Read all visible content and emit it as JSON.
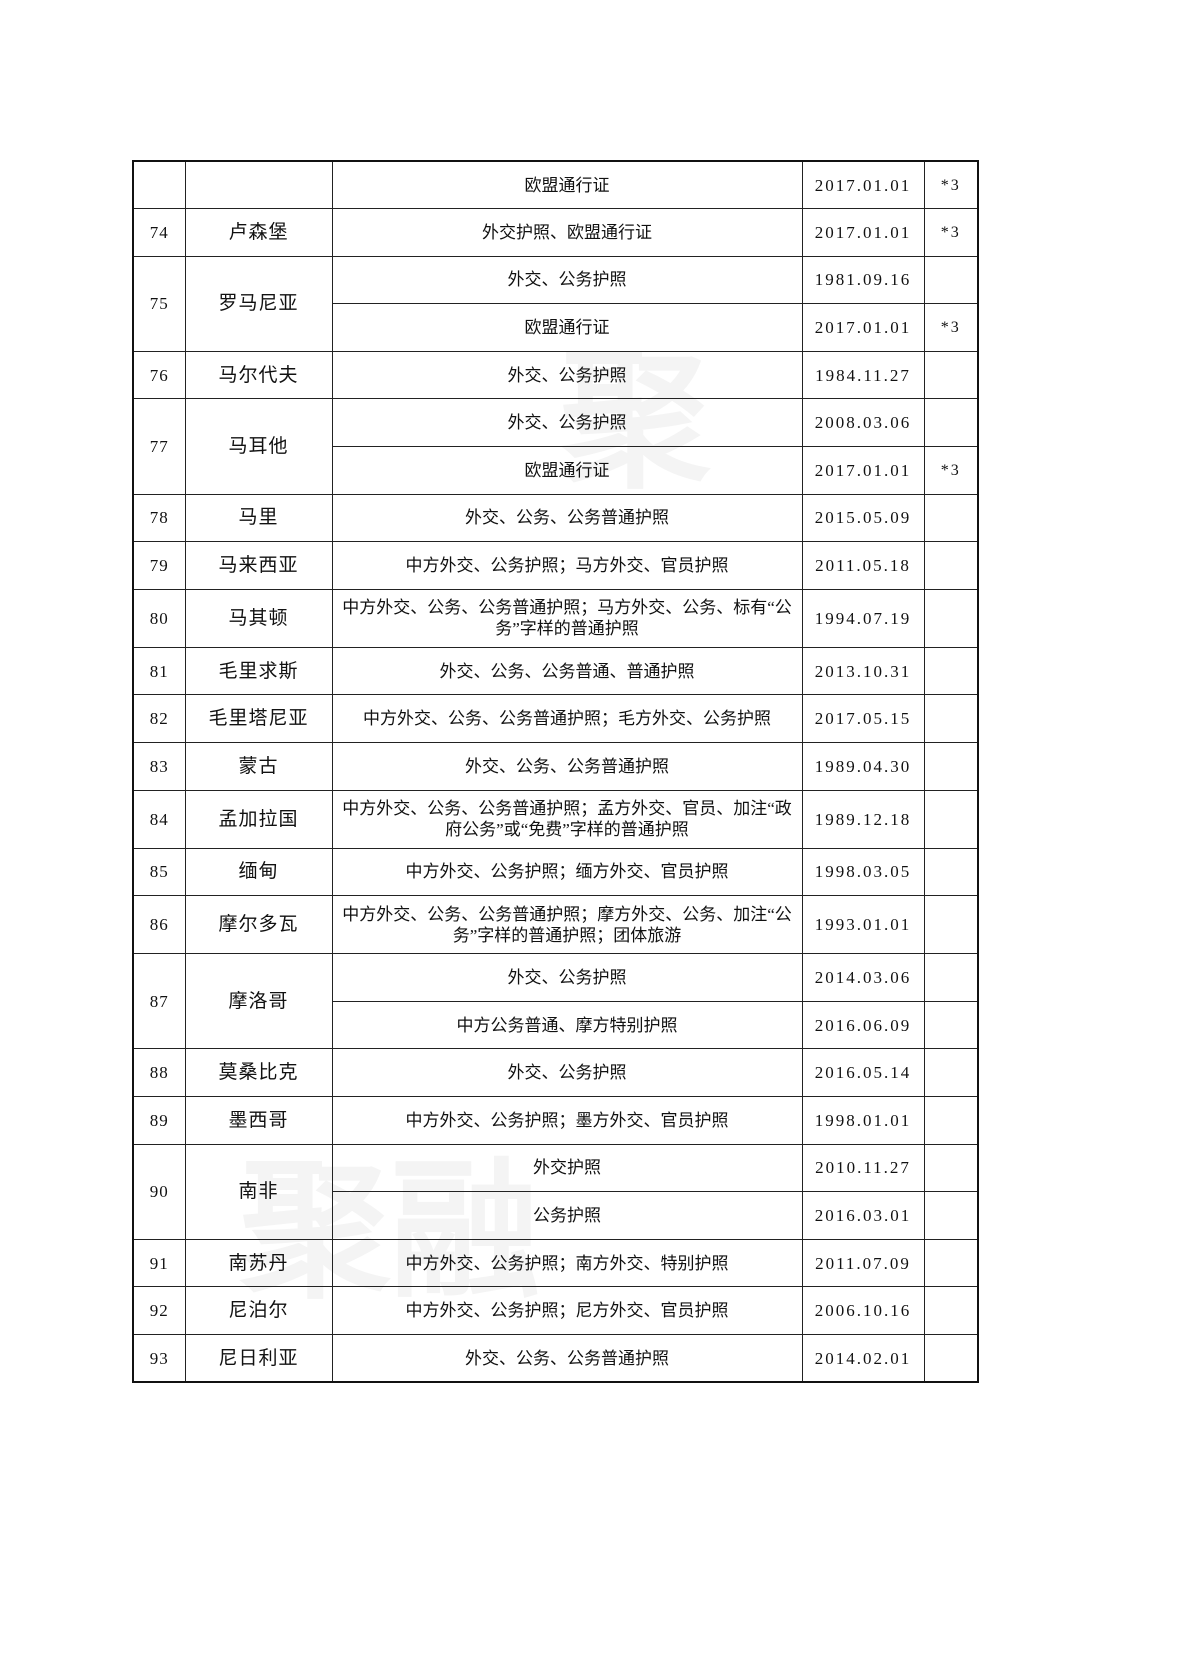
{
  "watermark": "聚融",
  "rows": [
    {
      "no": "",
      "country": "",
      "items": [
        {
          "scope": "欧盟通行证",
          "date": "2017.01.01",
          "note": "*3"
        }
      ]
    },
    {
      "no": "74",
      "country": "卢森堡",
      "items": [
        {
          "scope": "外交护照、欧盟通行证",
          "date": "2017.01.01",
          "note": "*3"
        }
      ]
    },
    {
      "no": "75",
      "country": "罗马尼亚",
      "items": [
        {
          "scope": "外交、公务护照",
          "date": "1981.09.16",
          "note": ""
        },
        {
          "scope": "欧盟通行证",
          "date": "2017.01.01",
          "note": "*3"
        }
      ]
    },
    {
      "no": "76",
      "country": "马尔代夫",
      "items": [
        {
          "scope": "外交、公务护照",
          "date": "1984.11.27",
          "note": ""
        }
      ]
    },
    {
      "no": "77",
      "country": "马耳他",
      "items": [
        {
          "scope": "外交、公务护照",
          "date": "2008.03.06",
          "note": ""
        },
        {
          "scope": "欧盟通行证",
          "date": "2017.01.01",
          "note": "*3"
        }
      ]
    },
    {
      "no": "78",
      "country": "马里",
      "items": [
        {
          "scope": "外交、公务、公务普通护照",
          "date": "2015.05.09",
          "note": ""
        }
      ]
    },
    {
      "no": "79",
      "country": "马来西亚",
      "items": [
        {
          "scope": "中方外交、公务护照；马方外交、官员护照",
          "date": "2011.05.18",
          "note": ""
        }
      ]
    },
    {
      "no": "80",
      "country": "马其顿",
      "items": [
        {
          "scope": "中方外交、公务、公务普通护照；马方外交、公务、标有“公务”字样的普通护照",
          "date": "1994.07.19",
          "note": ""
        }
      ]
    },
    {
      "no": "81",
      "country": "毛里求斯",
      "items": [
        {
          "scope": "外交、公务、公务普通、普通护照",
          "date": "2013.10.31",
          "note": ""
        }
      ]
    },
    {
      "no": "82",
      "country": "毛里塔尼亚",
      "items": [
        {
          "scope": "中方外交、公务、公务普通护照；毛方外交、公务护照",
          "date": "2017.05.15",
          "note": ""
        }
      ]
    },
    {
      "no": "83",
      "country": "蒙古",
      "items": [
        {
          "scope": "外交、公务、公务普通护照",
          "date": "1989.04.30",
          "note": ""
        }
      ]
    },
    {
      "no": "84",
      "country": "孟加拉国",
      "items": [
        {
          "scope": "中方外交、公务、公务普通护照；孟方外交、官员、加注“政府公务”或“免费”字样的普通护照",
          "date": "1989.12.18",
          "note": ""
        }
      ]
    },
    {
      "no": "85",
      "country": "缅甸",
      "items": [
        {
          "scope": "中方外交、公务护照；缅方外交、官员护照",
          "date": "1998.03.05",
          "note": ""
        }
      ]
    },
    {
      "no": "86",
      "country": "摩尔多瓦",
      "items": [
        {
          "scope": "中方外交、公务、公务普通护照；摩方外交、公务、加注“公务”字样的普通护照；团体旅游",
          "date": "1993.01.01",
          "note": ""
        }
      ]
    },
    {
      "no": "87",
      "country": "摩洛哥",
      "items": [
        {
          "scope": "外交、公务护照",
          "date": "2014.03.06",
          "note": ""
        },
        {
          "scope": "中方公务普通、摩方特别护照",
          "date": "2016.06.09",
          "note": ""
        }
      ]
    },
    {
      "no": "88",
      "country": "莫桑比克",
      "items": [
        {
          "scope": "外交、公务护照",
          "date": "2016.05.14",
          "note": ""
        }
      ]
    },
    {
      "no": "89",
      "country": "墨西哥",
      "items": [
        {
          "scope": "中方外交、公务护照；墨方外交、官员护照",
          "date": "1998.01.01",
          "note": ""
        }
      ]
    },
    {
      "no": "90",
      "country": "南非",
      "items": [
        {
          "scope": "外交护照",
          "date": "2010.11.27",
          "note": ""
        },
        {
          "scope": "公务护照",
          "date": "2016.03.01",
          "note": ""
        }
      ]
    },
    {
      "no": "91",
      "country": "南苏丹",
      "items": [
        {
          "scope": "中方外交、公务护照；南方外交、特别护照",
          "date": "2011.07.09",
          "note": ""
        }
      ]
    },
    {
      "no": "92",
      "country": "尼泊尔",
      "items": [
        {
          "scope": "中方外交、公务护照；尼方外交、官员护照",
          "date": "2006.10.16",
          "note": ""
        }
      ]
    },
    {
      "no": "93",
      "country": "尼日利亚",
      "items": [
        {
          "scope": "外交、公务、公务普通护照",
          "date": "2014.02.01",
          "note": ""
        }
      ]
    }
  ]
}
